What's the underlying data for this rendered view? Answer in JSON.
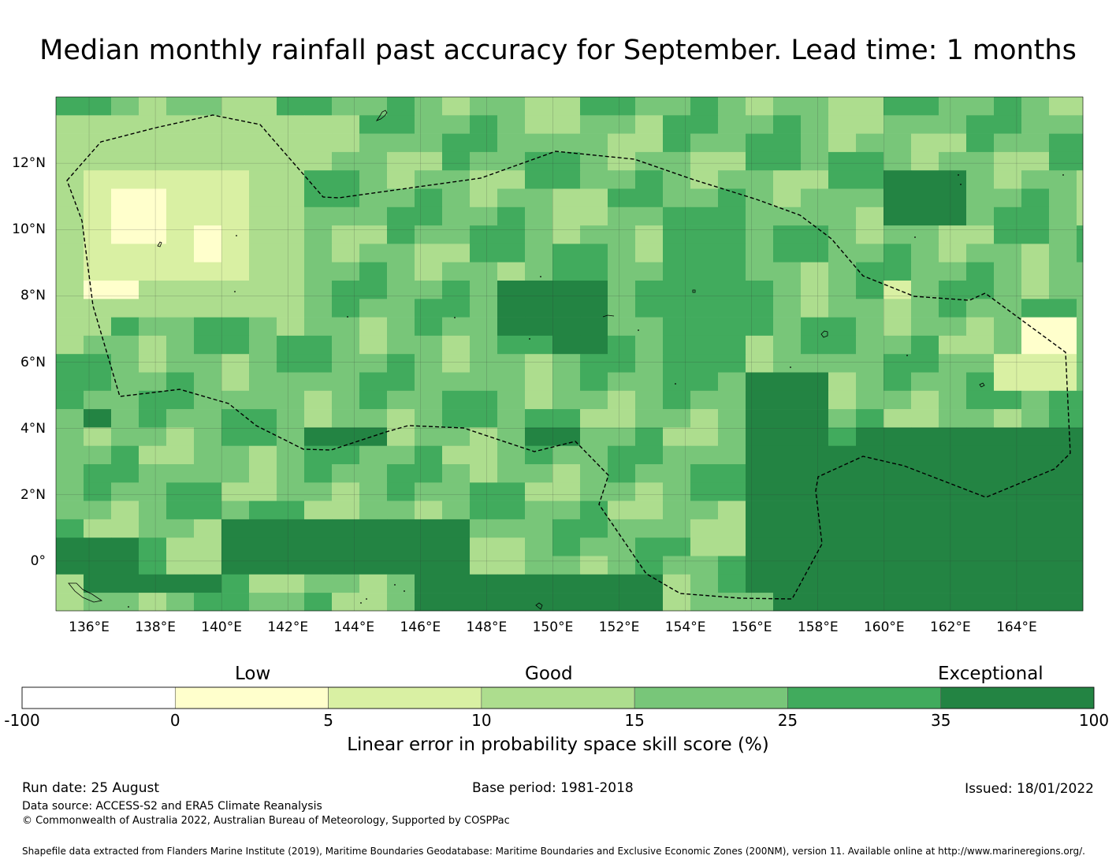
{
  "title": "Median monthly rainfall past accuracy for September. Lead time: 1 months",
  "map": {
    "x_ticks": [
      "136°E",
      "138°E",
      "140°E",
      "142°E",
      "144°E",
      "146°E",
      "148°E",
      "150°E",
      "152°E",
      "154°E",
      "156°E",
      "158°E",
      "160°E",
      "162°E",
      "164°E"
    ],
    "y_ticks": [
      "12°N",
      "10°N",
      "8°N",
      "6°N",
      "4°N",
      "2°N",
      "0°"
    ],
    "extent": {
      "lon_min": 135.0,
      "lon_max": 166.0,
      "lat_min": -1.5,
      "lat_max": 14.0
    },
    "boundary_style": "dashed",
    "grid": true
  },
  "legend": {
    "categories": [
      "Low",
      "Good",
      "Exceptional"
    ],
    "ticks": [
      "-100",
      "0",
      "5",
      "10",
      "15",
      "25",
      "35",
      "100"
    ],
    "colors": [
      "#ffffff",
      "#ffffcc",
      "#d9f0a3",
      "#addd8e",
      "#78c679",
      "#41ab5d",
      "#238443"
    ],
    "label": "Linear error in probability space skill score (%)"
  },
  "footer": {
    "run_date": "Run date: 25 August",
    "base_period": "Base period: 1981-2018",
    "issued": "Issued: 18/01/2022",
    "data_source": "Data source: ACCESS-S2 and ERA5 Climate Reanalysis",
    "copyright": "© Commonwealth of Australia 2022, Australian Bureau of Meteorology, Supported by COSPPac",
    "shapefile": "Shapefile data extracted from Flanders Marine Institute (2019), Maritime Boundaries Geodatabase: Maritime Boundaries and Exclusive Economic Zones (200NM), version 11. Available online at http://www.marineregions.org/."
  }
}
